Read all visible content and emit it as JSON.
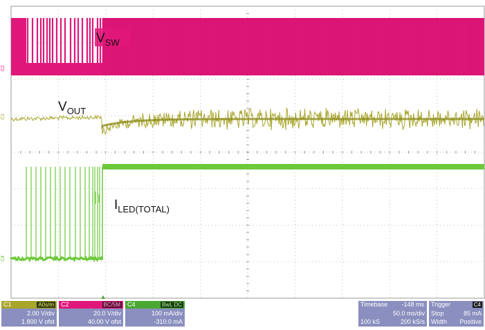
{
  "chart_data": {
    "type": "line",
    "title": "",
    "grid": true,
    "grid_divisions": {
      "x": 10,
      "y": 8
    },
    "series": [
      {
        "name": "VSW",
        "channel": "C2",
        "color": "#e0177a",
        "label_main": "V",
        "label_sub": "SW"
      },
      {
        "name": "VOUT",
        "channel": "C1",
        "color": "#a8a52a",
        "label_main": "V",
        "label_sub": "OUT"
      },
      {
        "name": "ILED(TOTAL)",
        "channel": "C4",
        "color": "#6cc93a",
        "label_main": "I",
        "label_sub": "LED(TOTAL)"
      }
    ],
    "channel_markers": [
      "C2",
      "C1",
      "C4"
    ],
    "trigger_marker": "▲"
  },
  "panels": {
    "c1": {
      "name": "C1",
      "tag": "A0s/m",
      "color": "#a8a52a",
      "scale": "2.00 V/div",
      "offset": "1.800 V ofst"
    },
    "c2": {
      "name": "C2",
      "tag": "BC/5M",
      "color": "#e0177a",
      "scale": "20.0 V/div",
      "offset": "40.00 V ofst"
    },
    "c4": {
      "name": "C4",
      "tag": "BwL DC",
      "color": "#4aa832",
      "scale": "100 mA/div",
      "offset": "-310.0 mA"
    },
    "timebase": {
      "label": "Timebase",
      "value": "-148 ms",
      "div": "50.0 ms/div",
      "samples": "100 kS",
      "rate": "200 kS/s"
    },
    "trigger": {
      "label": "Trigger",
      "tag": "C4",
      "mode_label": "Stop",
      "mode_value": "85 mA",
      "type_label": "Width",
      "type_value": "Positive"
    }
  }
}
